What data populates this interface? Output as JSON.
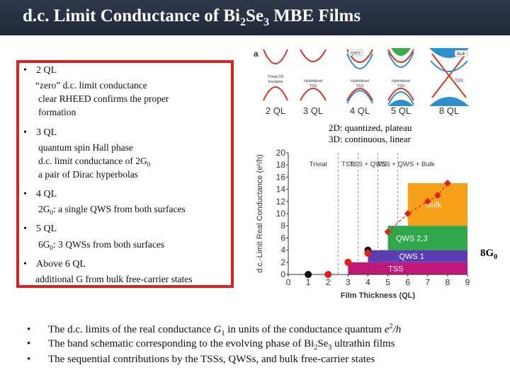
{
  "title": {
    "pre": "d.c. Limit Conductance of Bi",
    "s1": "2",
    "mid": "Se",
    "s2": "3",
    "post": " MBE Films"
  },
  "bullets": [
    {
      "head": "2 QL",
      "lines": [
        "“zero” d.c. limit conductance",
        "clear RHEED confirms the proper",
        "formation"
      ]
    },
    {
      "head": "3 QL",
      "lines": [
        "quantum spin Hall phase",
        "d.c. limit conductance of 2G",
        "a pair of Dirac hyperbolas"
      ],
      "sub": "0"
    },
    {
      "head": "4 QL",
      "pre": "2G",
      "sub": "0",
      "post": ": a single QWS from both surfaces"
    },
    {
      "head": "5 QL",
      "pre": "6G",
      "sub": "0",
      "post": ": 3 QWSs from both surfaces"
    },
    {
      "head": "Above 6 QL",
      "lines": [
        "additional G from bulk free-carrier states"
      ]
    }
  ],
  "note": {
    "line1": "2D: quantized, plateau",
    "line2": "3D: continuous, linear"
  },
  "label_8g": {
    "pre": "8G",
    "sub": "0"
  },
  "bottom": [
    {
      "pre": "The d.c. limits of the real conductance ",
      "g": "G",
      "gsub": "1",
      "mid": " in units of the conductance quantum ",
      "e": "e",
      "esup": "2",
      "post": "/h"
    },
    {
      "pre": "The band schematic corresponding to the evolving phase of  Bi",
      "s1": "2",
      "mid": "Se",
      "s2": "3",
      "post": " ultrathin films"
    },
    {
      "text": "The sequential contributions by the TSSs, QWSs, and bulk free-carrier states"
    }
  ],
  "panel": {
    "letter": "a",
    "labels": [
      "2 QL",
      "3 QL",
      "4 QL",
      "5 QL",
      "8 QL"
    ],
    "sub1": [
      "Trivial 2D",
      "Insulator"
    ],
    "hybrid": [
      "Hybridized",
      "TSS"
    ],
    "qws": "QWS",
    "bulk": "Bulk",
    "tss": "TSS"
  },
  "colors": {
    "tss": "#c0187a",
    "qws1": "#5a3db0",
    "qws23": "#2ea84a",
    "bulk": "#f6a01a",
    "dot_red": "#e0201a",
    "box_red": "#e02020"
  },
  "chart_data": {
    "type": "scatter",
    "xlabel": "Film Thickness (QL)",
    "ylabel": "d.c.-Limit Real Conductance (e²/h)",
    "xlim": [
      0,
      9
    ],
    "ylim": [
      0,
      20
    ],
    "xticks": [
      "0",
      "1",
      "2",
      "3",
      "4",
      "5",
      "6",
      "7",
      "8",
      "9"
    ],
    "yticks": [
      "0",
      "2",
      "4",
      "6",
      "8",
      "10",
      "12",
      "14",
      "16",
      "18",
      "20"
    ],
    "regions": [
      "Trivial",
      "TSS",
      "TSS + QWS",
      "TSS + QWS + Bulk"
    ],
    "bands": [
      {
        "name": "TSS",
        "y0": 0,
        "y1": 2,
        "from": 3,
        "to": 9
      },
      {
        "name": "QWS 1",
        "y0": 2,
        "y1": 4,
        "from": 4,
        "to": 9
      },
      {
        "name": "QWS 2,3",
        "y0": 4,
        "y1": 8,
        "from": 5,
        "to": 9
      },
      {
        "name": "Bulk",
        "y0": 8,
        "y1": 15,
        "from": 6,
        "to": 9
      }
    ],
    "black_points": [
      {
        "x": 1,
        "y": 0
      },
      {
        "x": 4,
        "y": 4
      }
    ],
    "red_points": [
      {
        "x": 2,
        "y": 0
      },
      {
        "x": 3,
        "y": 2
      },
      {
        "x": 4,
        "y": 3.5
      },
      {
        "x": 5,
        "y": 7
      },
      {
        "x": 6,
        "y": 10
      },
      {
        "x": 7,
        "y": 12
      },
      {
        "x": 7.5,
        "y": 13
      },
      {
        "x": 8,
        "y": 15
      }
    ]
  }
}
